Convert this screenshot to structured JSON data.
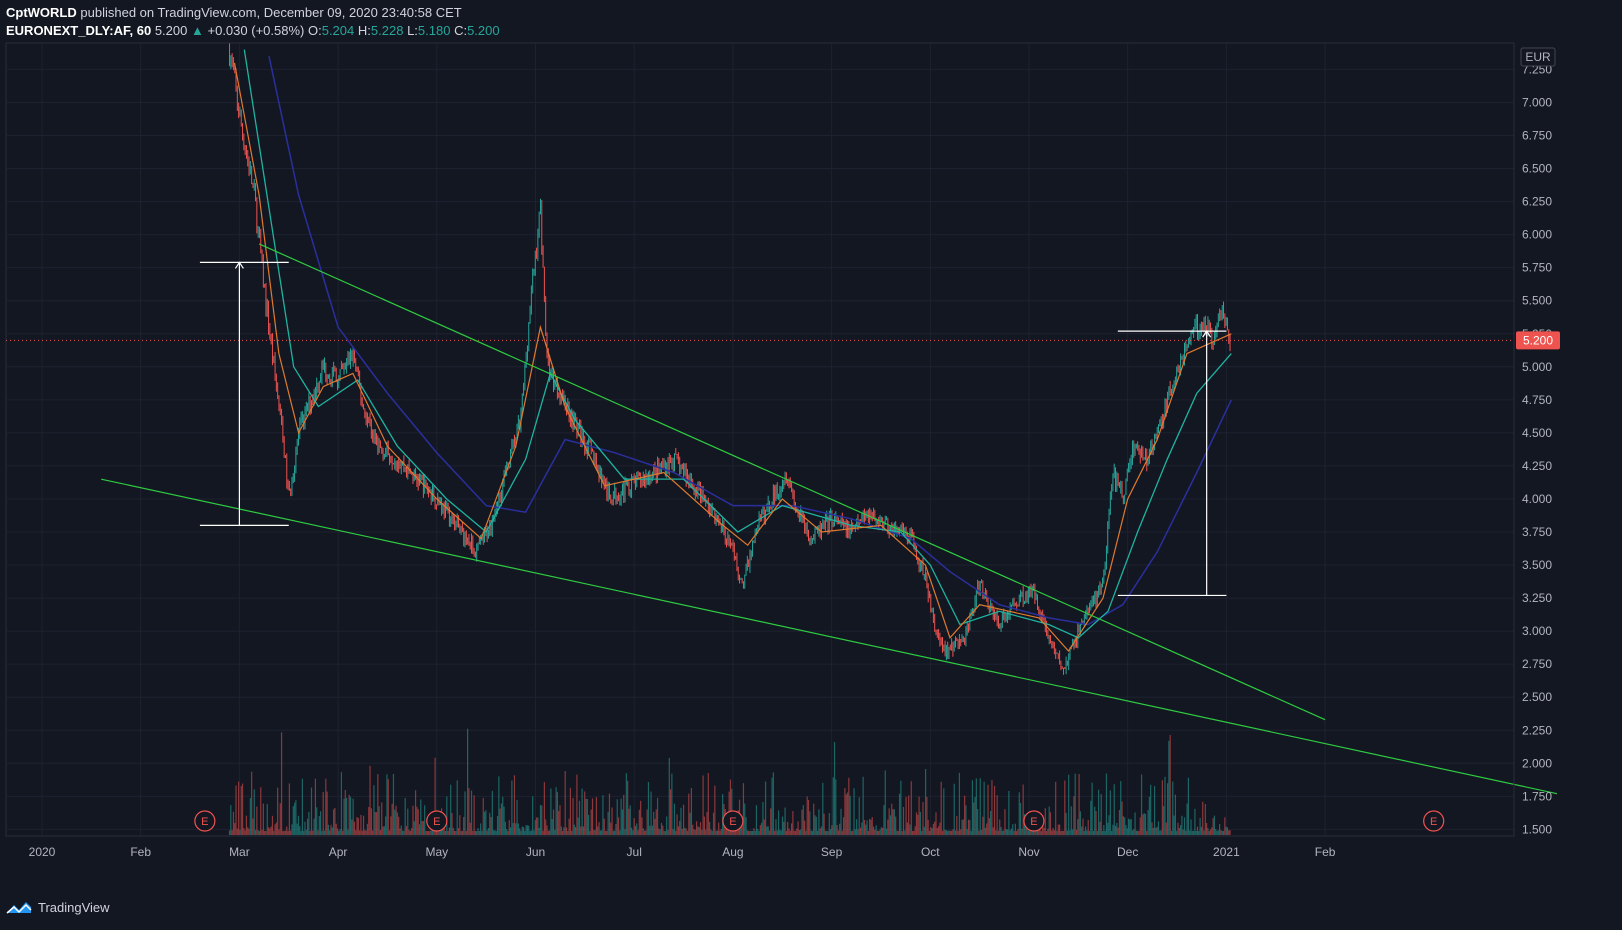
{
  "header": {
    "publisher": "CptWORLD",
    "published_text": "published on TradingView.com, December 09, 2020 23:40:58 CET",
    "symbol": "EURONEXT_DLY:AF, 60",
    "last": "5.200",
    "change": "+0.030 (+0.58%)",
    "o_label": "O:",
    "o": "5.204",
    "h_label": "H:",
    "h": "5.228",
    "l_label": "L:",
    "l": "5.180",
    "c_label": "C:",
    "c": "5.200"
  },
  "footer": {
    "brand": "TradingView"
  },
  "colors": {
    "background": "#131722",
    "grid": "#1e2230",
    "up": "#26a69a",
    "down": "#ef5350",
    "trendline": "#2ecc40",
    "ema_fast": "#e07a2e",
    "ema_mid": "#1fb3a0",
    "ema_slow": "#2a2f9e",
    "price_line": "#ef5350"
  },
  "chart_data": {
    "type": "candlestick",
    "currency": "EUR",
    "last_price": "5.200",
    "y_ticks": [
      "7.250",
      "7.000",
      "6.750",
      "6.500",
      "6.250",
      "6.000",
      "5.750",
      "5.500",
      "5.250",
      "5.000",
      "4.750",
      "4.500",
      "4.250",
      "4.000",
      "3.750",
      "3.500",
      "3.250",
      "3.000",
      "2.750",
      "2.500",
      "2.250",
      "2.000",
      "1.750",
      "1.500"
    ],
    "ylim": [
      1.45,
      7.45
    ],
    "x_labels": [
      "2020",
      "Feb",
      "Mar",
      "Apr",
      "May",
      "Jun",
      "Jul",
      "Aug",
      "Sep",
      "Oct",
      "Nov",
      "Dec",
      "2021",
      "Feb"
    ],
    "x_label_months": [
      0,
      1,
      2,
      3,
      4,
      5,
      6,
      7,
      8,
      9,
      10,
      11,
      12,
      13
    ],
    "earnings_markers": {
      "label": "E",
      "months": [
        1.65,
        4.0,
        7.0,
        10.05,
        14.1
      ]
    },
    "price_path": [
      [
        1.9,
        7.4
      ],
      [
        2.0,
        6.9
      ],
      [
        2.15,
        6.3
      ],
      [
        2.25,
        5.6
      ],
      [
        2.35,
        5.0
      ],
      [
        2.45,
        4.4
      ],
      [
        2.5,
        4.0
      ],
      [
        2.6,
        4.5
      ],
      [
        2.75,
        4.8
      ],
      [
        2.85,
        5.0
      ],
      [
        3.0,
        4.9
      ],
      [
        3.15,
        5.1
      ],
      [
        3.25,
        4.7
      ],
      [
        3.4,
        4.4
      ],
      [
        3.6,
        4.3
      ],
      [
        3.8,
        4.15
      ],
      [
        4.0,
        4.0
      ],
      [
        4.25,
        3.75
      ],
      [
        4.4,
        3.6
      ],
      [
        4.55,
        3.8
      ],
      [
        4.7,
        4.2
      ],
      [
        4.85,
        4.6
      ],
      [
        4.95,
        5.5
      ],
      [
        5.05,
        6.2
      ],
      [
        5.12,
        5.0
      ],
      [
        5.25,
        4.8
      ],
      [
        5.45,
        4.5
      ],
      [
        5.6,
        4.3
      ],
      [
        5.75,
        4.0
      ],
      [
        5.95,
        4.1
      ],
      [
        6.2,
        4.2
      ],
      [
        6.4,
        4.3
      ],
      [
        6.55,
        4.15
      ],
      [
        6.75,
        3.95
      ],
      [
        6.95,
        3.7
      ],
      [
        7.1,
        3.35
      ],
      [
        7.25,
        3.8
      ],
      [
        7.4,
        4.0
      ],
      [
        7.55,
        4.2
      ],
      [
        7.65,
        3.9
      ],
      [
        7.8,
        3.7
      ],
      [
        8.0,
        3.85
      ],
      [
        8.2,
        3.75
      ],
      [
        8.35,
        3.9
      ],
      [
        8.55,
        3.8
      ],
      [
        8.8,
        3.7
      ],
      [
        8.95,
        3.4
      ],
      [
        9.05,
        3.0
      ],
      [
        9.15,
        2.85
      ],
      [
        9.35,
        2.95
      ],
      [
        9.5,
        3.35
      ],
      [
        9.7,
        3.05
      ],
      [
        9.9,
        3.25
      ],
      [
        10.05,
        3.3
      ],
      [
        10.2,
        2.95
      ],
      [
        10.35,
        2.7
      ],
      [
        10.55,
        3.1
      ],
      [
        10.75,
        3.35
      ],
      [
        10.85,
        4.2
      ],
      [
        10.95,
        4.0
      ],
      [
        11.05,
        4.4
      ],
      [
        11.2,
        4.3
      ],
      [
        11.35,
        4.6
      ],
      [
        11.5,
        5.0
      ],
      [
        11.62,
        5.2
      ],
      [
        11.75,
        5.35
      ],
      [
        11.88,
        5.2
      ],
      [
        11.95,
        5.45
      ],
      [
        12.05,
        5.2
      ]
    ],
    "ema_fast_path": [
      [
        1.95,
        7.3
      ],
      [
        2.2,
        6.3
      ],
      [
        2.4,
        5.1
      ],
      [
        2.6,
        4.5
      ],
      [
        2.85,
        4.85
      ],
      [
        3.15,
        4.95
      ],
      [
        3.5,
        4.4
      ],
      [
        4.0,
        4.0
      ],
      [
        4.45,
        3.7
      ],
      [
        4.8,
        4.4
      ],
      [
        5.05,
        5.3
      ],
      [
        5.3,
        4.7
      ],
      [
        5.7,
        4.1
      ],
      [
        6.3,
        4.2
      ],
      [
        6.9,
        3.8
      ],
      [
        7.15,
        3.65
      ],
      [
        7.5,
        4.0
      ],
      [
        7.9,
        3.75
      ],
      [
        8.5,
        3.8
      ],
      [
        8.95,
        3.5
      ],
      [
        9.2,
        2.95
      ],
      [
        9.5,
        3.2
      ],
      [
        10.1,
        3.1
      ],
      [
        10.4,
        2.85
      ],
      [
        10.75,
        3.25
      ],
      [
        11.0,
        4.0
      ],
      [
        11.3,
        4.45
      ],
      [
        11.6,
        5.1
      ],
      [
        12.05,
        5.25
      ]
    ],
    "ema_mid_path": [
      [
        2.05,
        7.4
      ],
      [
        2.3,
        6.2
      ],
      [
        2.55,
        5.0
      ],
      [
        2.8,
        4.7
      ],
      [
        3.2,
        4.9
      ],
      [
        3.6,
        4.4
      ],
      [
        4.1,
        4.0
      ],
      [
        4.5,
        3.75
      ],
      [
        4.9,
        4.3
      ],
      [
        5.15,
        4.95
      ],
      [
        5.4,
        4.6
      ],
      [
        5.9,
        4.15
      ],
      [
        6.5,
        4.15
      ],
      [
        7.05,
        3.75
      ],
      [
        7.5,
        3.95
      ],
      [
        8.2,
        3.8
      ],
      [
        8.7,
        3.75
      ],
      [
        9.0,
        3.5
      ],
      [
        9.3,
        3.05
      ],
      [
        9.7,
        3.15
      ],
      [
        10.2,
        3.05
      ],
      [
        10.5,
        2.95
      ],
      [
        10.8,
        3.15
      ],
      [
        11.1,
        3.75
      ],
      [
        11.4,
        4.3
      ],
      [
        11.7,
        4.8
      ],
      [
        12.05,
        5.1
      ]
    ],
    "ema_slow_path": [
      [
        2.3,
        7.35
      ],
      [
        2.6,
        6.3
      ],
      [
        3.0,
        5.3
      ],
      [
        3.5,
        4.8
      ],
      [
        4.0,
        4.35
      ],
      [
        4.5,
        3.95
      ],
      [
        4.9,
        3.9
      ],
      [
        5.3,
        4.45
      ],
      [
        5.8,
        4.35
      ],
      [
        6.4,
        4.2
      ],
      [
        7.0,
        3.95
      ],
      [
        7.6,
        3.95
      ],
      [
        8.2,
        3.85
      ],
      [
        8.8,
        3.7
      ],
      [
        9.2,
        3.45
      ],
      [
        9.7,
        3.2
      ],
      [
        10.2,
        3.1
      ],
      [
        10.6,
        3.05
      ],
      [
        10.95,
        3.2
      ],
      [
        11.3,
        3.6
      ],
      [
        11.7,
        4.2
      ],
      [
        12.05,
        4.75
      ]
    ],
    "trendline_upper": [
      [
        2.2,
        5.93
      ],
      [
        13.0,
        2.33
      ]
    ],
    "trendline_lower": [
      [
        0.6,
        4.15
      ],
      [
        15.35,
        1.77
      ]
    ],
    "measure_left": {
      "month": 2.0,
      "top": 5.79,
      "bottom": 3.8,
      "left": 1.6,
      "right": 2.5
    },
    "measure_right": {
      "month": 11.8,
      "top": 5.27,
      "bottom": 3.27,
      "left": 10.9,
      "right": 12.0
    },
    "volume_range": [
      0,
      1.0
    ]
  }
}
